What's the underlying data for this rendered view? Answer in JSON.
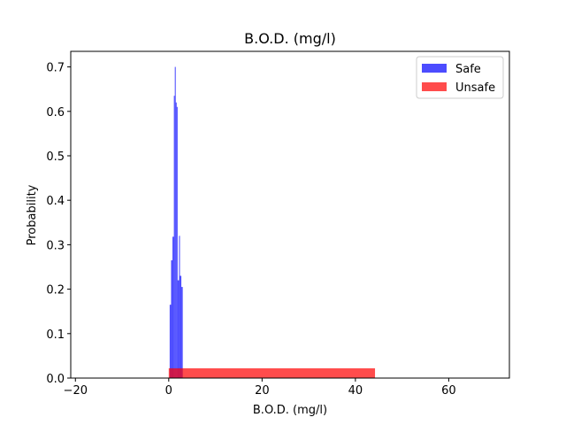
{
  "chart_data": {
    "type": "bar",
    "title": "B.O.D. (mg/l)",
    "xlabel": "B.O.D. (mg/l)",
    "ylabel": "Probability",
    "xlim": [
      -21,
      73
    ],
    "ylim": [
      0,
      0.735
    ],
    "xticks": [
      -20,
      0,
      20,
      40,
      60
    ],
    "xtick_labels": [
      "−20",
      "0",
      "20",
      "40",
      "60"
    ],
    "yticks": [
      0.0,
      0.1,
      0.2,
      0.3,
      0.4,
      0.5,
      0.6,
      0.7
    ],
    "ytick_labels": [
      "0.0",
      "0.1",
      "0.2",
      "0.3",
      "0.4",
      "0.5",
      "0.6",
      "0.7"
    ],
    "grid": false,
    "legend_position": "top-right",
    "series": [
      {
        "name": "Safe",
        "color": "#0000ff",
        "opacity": 0.7,
        "bins": [
          {
            "x0": 0.2,
            "x1": 0.5,
            "value": 0.165
          },
          {
            "x0": 0.5,
            "x1": 0.8,
            "value": 0.265
          },
          {
            "x0": 0.8,
            "x1": 1.1,
            "value": 0.318
          },
          {
            "x0": 1.1,
            "x1": 1.3,
            "value": 0.635
          },
          {
            "x0": 1.3,
            "x1": 1.5,
            "value": 0.7
          },
          {
            "x0": 1.5,
            "x1": 1.7,
            "value": 0.62
          },
          {
            "x0": 1.7,
            "x1": 1.9,
            "value": 0.61
          },
          {
            "x0": 1.9,
            "x1": 2.2,
            "value": 0.22
          },
          {
            "x0": 2.2,
            "x1": 2.4,
            "value": 0.32
          },
          {
            "x0": 2.4,
            "x1": 2.7,
            "value": 0.23
          },
          {
            "x0": 2.7,
            "x1": 3.0,
            "value": 0.205
          }
        ]
      },
      {
        "name": "Unsafe",
        "color": "#ff0000",
        "opacity": 0.7,
        "bins": [
          {
            "x0": 0.0,
            "x1": 44.2,
            "value": 0.022
          }
        ]
      }
    ]
  }
}
